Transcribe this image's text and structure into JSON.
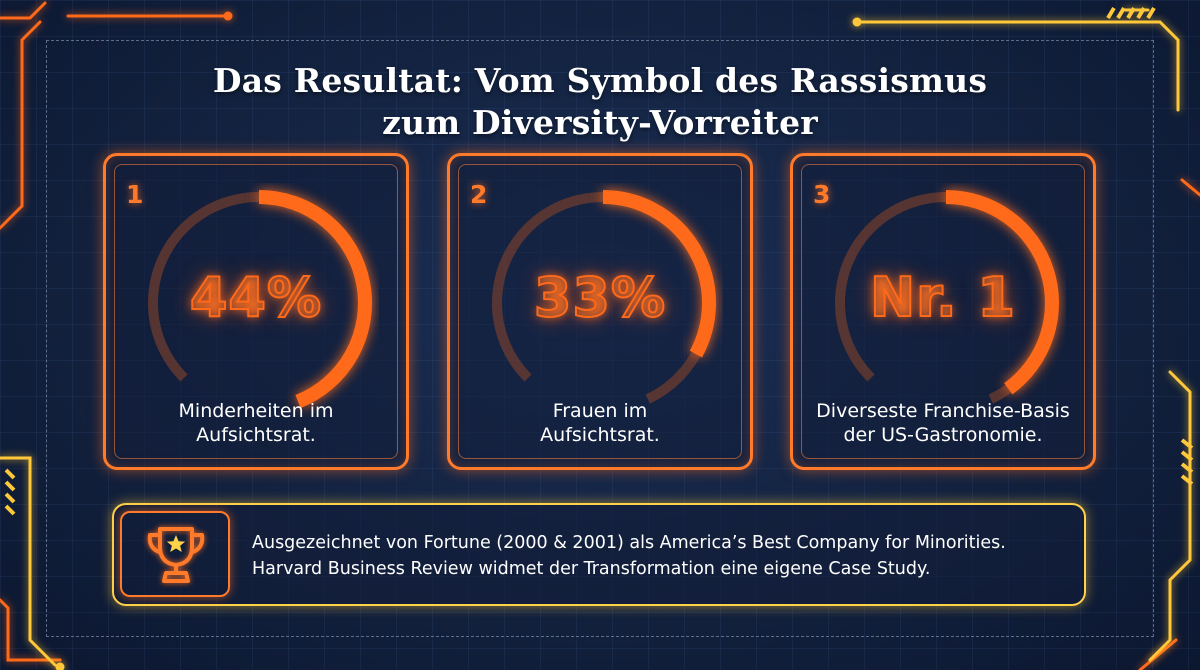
{
  "title": {
    "line1": "Das Resultat: Vom Symbol des Rassismus",
    "line2": "zum Diversity-Vorreiter"
  },
  "cards": [
    {
      "number": "1",
      "value": "44%",
      "fill": 0.44,
      "caption_line1": "Minderheiten im",
      "caption_line2": "Aufsichtsrat."
    },
    {
      "number": "2",
      "value": "33%",
      "fill": 0.33,
      "caption_line1": "Frauen im",
      "caption_line2": "Aufsichtsrat."
    },
    {
      "number": "3",
      "value": "Nr. 1",
      "fill": 0.4,
      "caption_line1": "Diverseste Franchise-Basis",
      "caption_line2": "der US-Gastronomie."
    }
  ],
  "banner": {
    "icon": "trophy-icon",
    "line1": "Ausgezeichnet von Fortune (2000 & 2001) als America’s Best Company for Minorities.",
    "line2": "Harvard Business Review widmet der Transformation eine eigene Case Study."
  },
  "colors": {
    "accent_orange": "#ff7a2a",
    "accent_yellow": "#ffd24a",
    "background": "#13223f"
  }
}
